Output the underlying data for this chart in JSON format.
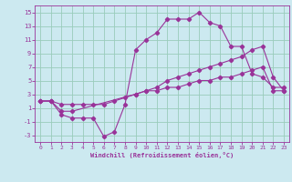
{
  "background_color": "#cce9f0",
  "grid_color": "#99ccbb",
  "line_color": "#993399",
  "xlabel": "Windchill (Refroidissement éolien,°C)",
  "xlim": [
    -0.5,
    23.5
  ],
  "ylim": [
    -4,
    16
  ],
  "yticks": [
    -3,
    -1,
    1,
    3,
    5,
    7,
    9,
    11,
    13,
    15
  ],
  "xticks": [
    0,
    1,
    2,
    3,
    4,
    5,
    6,
    7,
    8,
    9,
    10,
    11,
    12,
    13,
    14,
    15,
    16,
    17,
    18,
    19,
    20,
    21,
    22,
    23
  ],
  "line1_x": [
    0,
    1,
    2,
    3,
    4,
    5,
    6,
    7,
    8,
    9,
    10,
    11,
    12,
    13,
    14,
    15,
    16,
    17,
    18,
    19,
    20,
    21,
    22,
    23
  ],
  "line1_y": [
    2,
    2,
    0,
    -0.5,
    -0.5,
    -0.5,
    -3.2,
    -2.5,
    1.5,
    9.5,
    11,
    12,
    14,
    14,
    14,
    15,
    13.5,
    13,
    10,
    10,
    6,
    5.5,
    4,
    4
  ],
  "line2_x": [
    0,
    1,
    2,
    3,
    9,
    10,
    11,
    12,
    13,
    14,
    15,
    16,
    17,
    18,
    19,
    20,
    21,
    22,
    23
  ],
  "line2_y": [
    2,
    2,
    0.5,
    0.5,
    3,
    3.5,
    4,
    5,
    5.5,
    6,
    6.5,
    7,
    7.5,
    8,
    8.5,
    9.5,
    10,
    5.5,
    3.5
  ],
  "line3_x": [
    0,
    1,
    2,
    3,
    4,
    5,
    6,
    7,
    8,
    9,
    10,
    11,
    12,
    13,
    14,
    15,
    16,
    17,
    18,
    19,
    20,
    21,
    22,
    23
  ],
  "line3_y": [
    2,
    2,
    1.5,
    1.5,
    1.5,
    1.5,
    1.5,
    2,
    2.5,
    3,
    3.5,
    3.5,
    4,
    4,
    4.5,
    5,
    5,
    5.5,
    5.5,
    6,
    6.5,
    7,
    3.5,
    3.5
  ]
}
